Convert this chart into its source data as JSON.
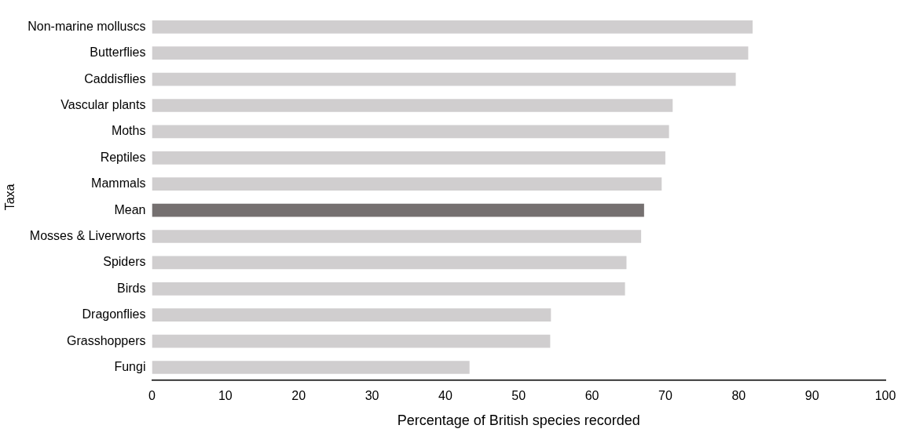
{
  "chart_data": {
    "type": "bar",
    "orientation": "horizontal",
    "xlabel": "Percentage of British species recorded",
    "ylabel": "Taxa",
    "categories": [
      "Non-marine molluscs",
      "Butterflies",
      "Caddisflies",
      "Vascular plants",
      "Moths",
      "Reptiles",
      "Mammals",
      "Mean",
      "Mosses & Liverworts",
      "Spiders",
      "Birds",
      "Dragonflies",
      "Grasshoppers",
      "Fungi"
    ],
    "values": [
      81.9,
      81.3,
      79.6,
      71.0,
      70.5,
      70.0,
      69.5,
      67.1,
      66.7,
      64.7,
      64.5,
      54.4,
      54.3,
      43.3
    ],
    "colors": [
      "#d0cecf",
      "#d0cecf",
      "#d0cecf",
      "#d0cecf",
      "#d0cecf",
      "#d0cecf",
      "#d0cecf",
      "#757070",
      "#d0cecf",
      "#d0cecf",
      "#d0cecf",
      "#d0cecf",
      "#d0cecf",
      "#d0cecf"
    ],
    "xlim": [
      0,
      100
    ],
    "xticks": [
      0,
      10,
      20,
      30,
      40,
      50,
      60,
      70,
      80,
      90,
      100
    ],
    "grid": false,
    "legend": false
  }
}
